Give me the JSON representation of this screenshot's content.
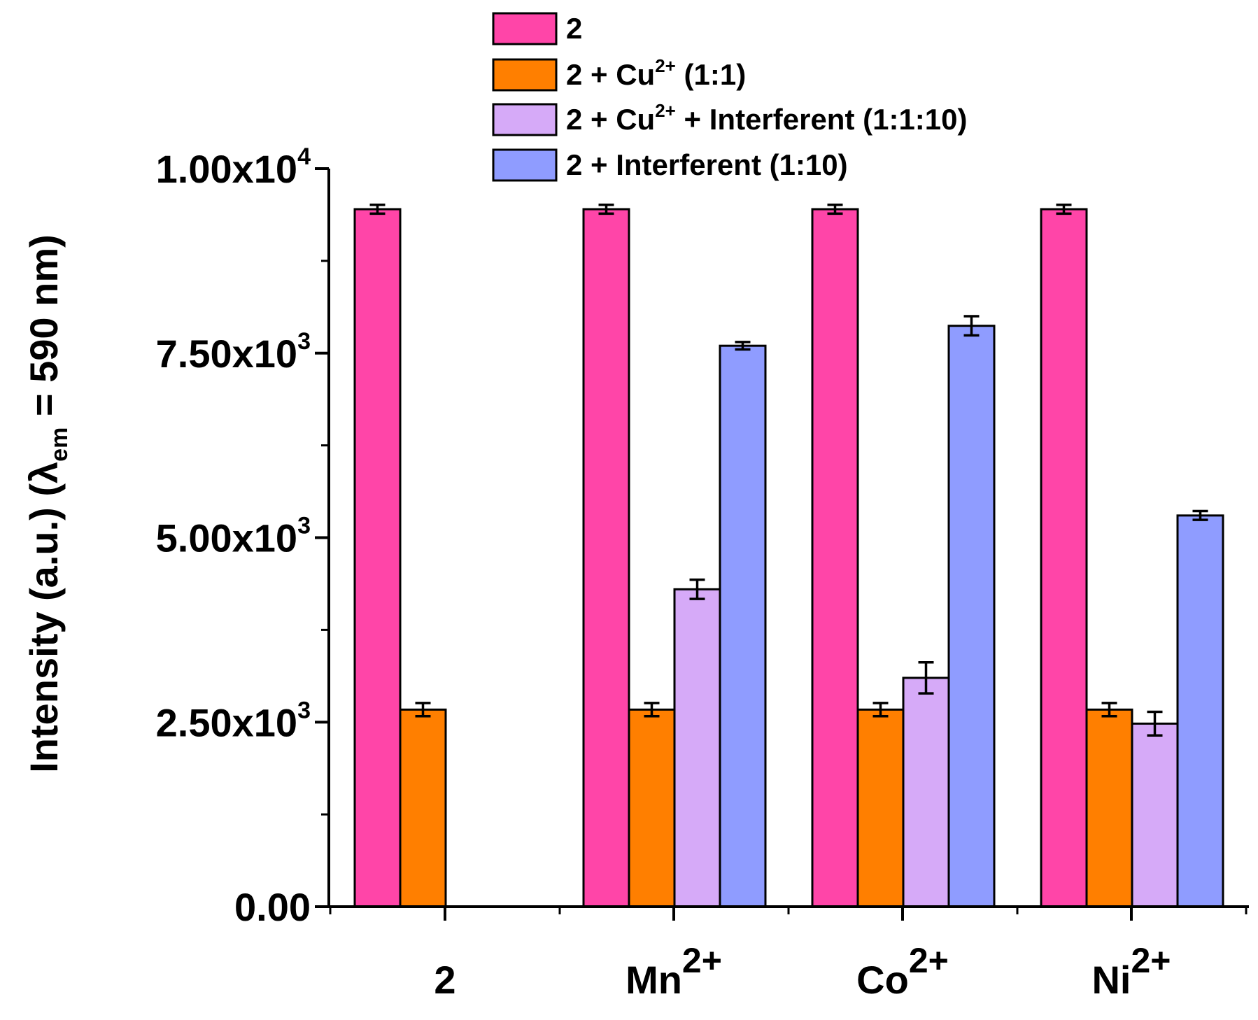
{
  "chart_data": {
    "type": "bar",
    "title": "",
    "xlabel": "",
    "ylabel": {
      "main": "Intensity (a.u.) (",
      "lambda": "λ",
      "sub": "em",
      "rest": " = 590 nm)"
    },
    "ylim": [
      0,
      10000
    ],
    "categories": [
      {
        "base": "2",
        "sup": ""
      },
      {
        "base": "Mn",
        "sup": "2+"
      },
      {
        "base": "Co",
        "sup": "2+"
      },
      {
        "base": "Ni",
        "sup": "2+"
      }
    ],
    "y_ticks": [
      {
        "value": 0,
        "mant": "0.00",
        "exp": ""
      },
      {
        "value": 2500,
        "mant": "2.50x10",
        "exp": "3"
      },
      {
        "value": 5000,
        "mant": "5.00x10",
        "exp": "3"
      },
      {
        "value": 7500,
        "mant": "7.50x10",
        "exp": "3"
      },
      {
        "value": 10000,
        "mant": "1.00x10",
        "exp": "4"
      }
    ],
    "series": [
      {
        "name": "2",
        "legend": {
          "pre": "2",
          "sup": "",
          "post": ""
        },
        "color": "#ff45a8",
        "values": [
          9450,
          9450,
          9450,
          9450
        ],
        "errors": [
          60,
          60,
          60,
          60
        ]
      },
      {
        "name": "2 + Cu2+ (1:1)",
        "legend": {
          "pre": "2 + Cu",
          "sup": "2+",
          "post": " (1:1)"
        },
        "color": "#ff7f00",
        "values": [
          2670,
          2670,
          2670,
          2670
        ],
        "errors": [
          90,
          90,
          90,
          90
        ]
      },
      {
        "name": "2 + Cu2+ + Interferent (1:1:10)",
        "legend": {
          "pre": "2 + Cu",
          "sup": "2+",
          "post": " + Interferent (1:1:10)"
        },
        "color": "#d6aaf8",
        "values": [
          null,
          4300,
          3100,
          2480
        ],
        "errors": [
          null,
          130,
          210,
          160
        ]
      },
      {
        "name": "2 + Interferent (1:10)",
        "legend": {
          "pre": "2 + Interferent (1:10)",
          "sup": "",
          "post": ""
        },
        "color": "#8f9cff",
        "values": [
          null,
          7600,
          7870,
          5300
        ],
        "errors": [
          null,
          50,
          130,
          60
        ]
      }
    ]
  }
}
